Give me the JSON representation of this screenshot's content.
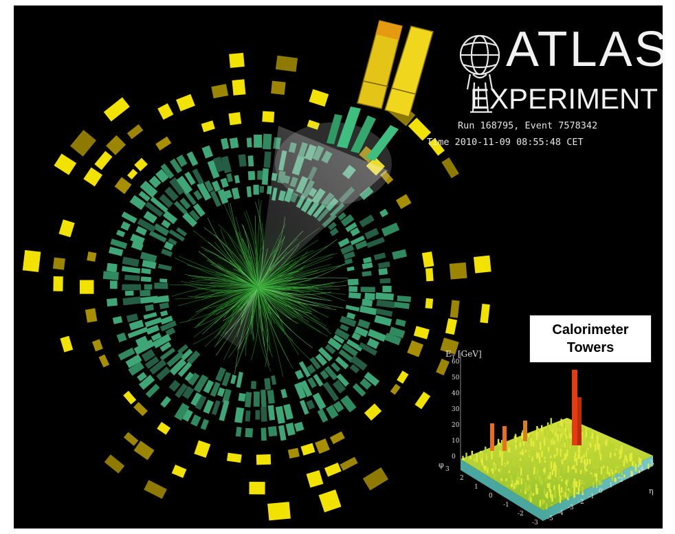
{
  "logo": {
    "line1": "ATLAS",
    "line2": "EXPERIMENT",
    "emblem": "atlas-figure-with-globe-icon"
  },
  "event": {
    "run_line": "Run 168795, Event 7578342",
    "time_line": "Time 2010-11-09 08:55:48 CET"
  },
  "inset": {
    "box_title_line1": "Calorimeter",
    "box_title_line2": "Towers",
    "z_axis_label": "E",
    "z_axis_sub": "T",
    "z_axis_unit": "[GeV]",
    "z_ticks": [
      "0",
      "10",
      "20",
      "30",
      "40",
      "50",
      "60"
    ],
    "phi_label": "φ",
    "phi_ticks": [
      "3",
      "2",
      "1",
      "0",
      "-1",
      "-2",
      "-3"
    ],
    "eta_label": "η",
    "eta_ticks": [
      "-5",
      "-4",
      "-3",
      "-2",
      "-1",
      "0",
      "1",
      "2",
      "3",
      "4",
      "5"
    ]
  },
  "colors": {
    "background": "#000000",
    "inner_cells": "#3fa777",
    "outer_cells": "#f2e200",
    "tracks": "#2ea02e",
    "jet_towers": "#d9b800",
    "peak": "#e23c12"
  }
}
